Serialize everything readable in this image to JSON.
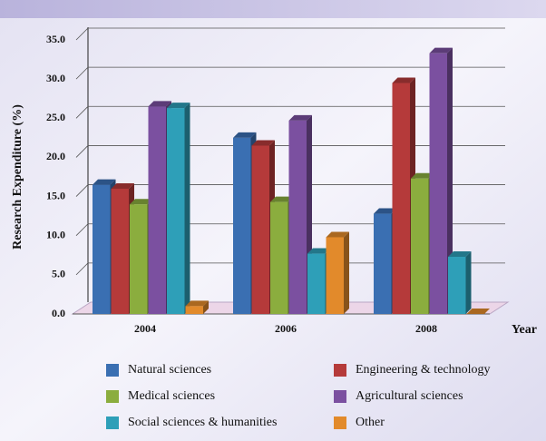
{
  "chart_data": {
    "type": "bar3d",
    "y_label": "Research Expenditure (%)",
    "x_label": "Year",
    "categories": [
      "2004",
      "2006",
      "2008"
    ],
    "series": [
      {
        "name": "Natural sciences",
        "color": "#3a6fb2",
        "values": [
          16.5,
          22.5,
          12.8
        ]
      },
      {
        "name": "Engineering & technology",
        "color": "#b53a3a",
        "values": [
          16.0,
          21.5,
          29.5
        ]
      },
      {
        "name": "Medical sciences",
        "color": "#8bad3e",
        "values": [
          14.0,
          14.3,
          17.3
        ]
      },
      {
        "name": "Agricultural sciences",
        "color": "#7b50a0",
        "values": [
          26.5,
          24.7,
          33.3
        ]
      },
      {
        "name": "Social sciences & humanities",
        "color": "#2e9fb8",
        "values": [
          26.3,
          7.7,
          7.3
        ]
      },
      {
        "name": "Other",
        "color": "#e28a2b",
        "values": [
          1.0,
          9.8,
          0
        ]
      }
    ],
    "ylim": [
      0,
      35
    ],
    "yticks": [
      {
        "value": 0,
        "label": "0.0"
      },
      {
        "value": 5,
        "label": "5.0"
      },
      {
        "value": 10,
        "label": "10.0"
      },
      {
        "value": 15,
        "label": "15.0"
      },
      {
        "value": 20,
        "label": "20.0"
      },
      {
        "value": 25,
        "label": "25.0"
      },
      {
        "value": 30,
        "label": "30.0"
      },
      {
        "value": 35,
        "label": "35.0"
      }
    ],
    "grid": true
  }
}
